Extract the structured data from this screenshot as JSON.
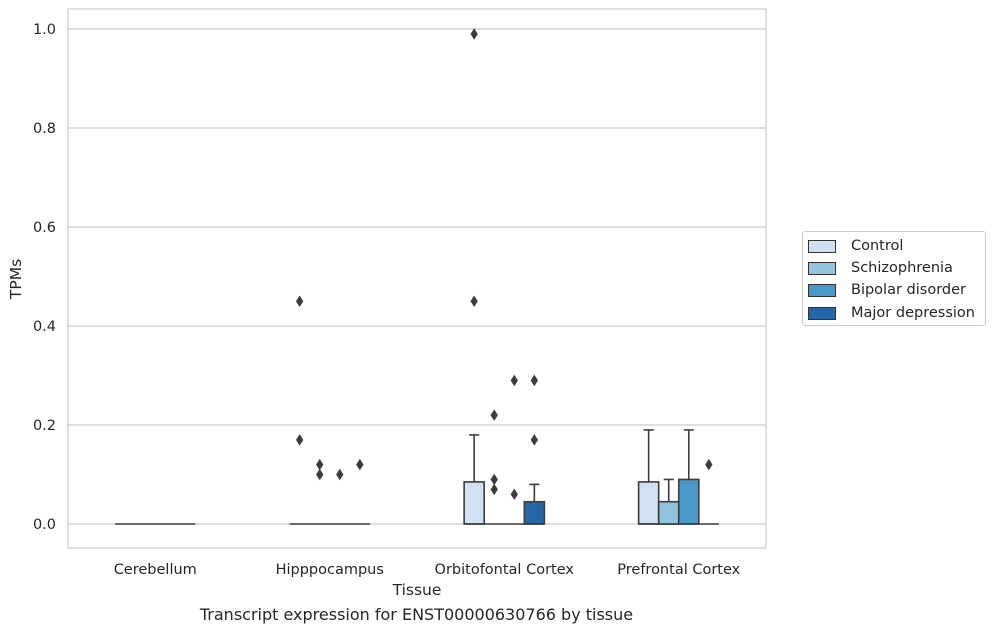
{
  "chart_data": {
    "type": "box",
    "xlabel": "Tissue",
    "ylabel": "TPMs",
    "caption": "Transcript expression for ENST00000630766 by tissue",
    "categories": [
      "Cerebellum",
      "Hipppocampus",
      "Orbitofontal Cortex",
      "Prefrontal Cortex"
    ],
    "ylim": [
      -0.05,
      1.04
    ],
    "yticks": [
      "0.0",
      "0.2",
      "0.4",
      "0.6",
      "0.8",
      "1.0"
    ],
    "grid": "horizontal",
    "legend_position": "right",
    "series": [
      {
        "name": "Control",
        "color": "#cfe1f2",
        "boxes": [
          {
            "q1": 0,
            "median": 0,
            "q3": 0,
            "whisker_low": 0,
            "whisker_high": 0,
            "outliers": []
          },
          {
            "q1": 0,
            "median": 0,
            "q3": 0,
            "whisker_low": 0,
            "whisker_high": 0,
            "outliers": [
              0.45,
              0.17
            ]
          },
          {
            "q1": 0,
            "median": 0,
            "q3": 0.085,
            "whisker_low": 0,
            "whisker_high": 0.18,
            "outliers": [
              0.99,
              0.45
            ]
          },
          {
            "q1": 0,
            "median": 0,
            "q3": 0.085,
            "whisker_low": 0,
            "whisker_high": 0.19,
            "outliers": []
          }
        ]
      },
      {
        "name": "Schizophrenia",
        "color": "#93c4de",
        "boxes": [
          {
            "q1": 0,
            "median": 0,
            "q3": 0,
            "whisker_low": 0,
            "whisker_high": 0,
            "outliers": []
          },
          {
            "q1": 0,
            "median": 0,
            "q3": 0,
            "whisker_low": 0,
            "whisker_high": 0,
            "outliers": [
              0.12,
              0.1
            ]
          },
          {
            "q1": 0,
            "median": 0,
            "q3": 0,
            "whisker_low": 0,
            "whisker_high": 0,
            "outliers": [
              0.22,
              0.09,
              0.07
            ]
          },
          {
            "q1": 0,
            "median": 0,
            "q3": 0.045,
            "whisker_low": 0,
            "whisker_high": 0.09,
            "outliers": []
          }
        ]
      },
      {
        "name": "Bipolar disorder",
        "color": "#4a98c9",
        "boxes": [
          {
            "q1": 0,
            "median": 0,
            "q3": 0,
            "whisker_low": 0,
            "whisker_high": 0,
            "outliers": []
          },
          {
            "q1": 0,
            "median": 0,
            "q3": 0,
            "whisker_low": 0,
            "whisker_high": 0,
            "outliers": [
              0.1
            ]
          },
          {
            "q1": 0,
            "median": 0,
            "q3": 0,
            "whisker_low": 0,
            "whisker_high": 0,
            "outliers": [
              0.29,
              0.06
            ]
          },
          {
            "q1": 0,
            "median": 0,
            "q3": 0.09,
            "whisker_low": 0,
            "whisker_high": 0.19,
            "outliers": []
          }
        ]
      },
      {
        "name": "Major depression",
        "color": "#2467a8",
        "boxes": [
          {
            "q1": 0,
            "median": 0,
            "q3": 0,
            "whisker_low": 0,
            "whisker_high": 0,
            "outliers": []
          },
          {
            "q1": 0,
            "median": 0,
            "q3": 0,
            "whisker_low": 0,
            "whisker_high": 0,
            "outliers": [
              0.12
            ]
          },
          {
            "q1": 0,
            "median": 0,
            "q3": 0.045,
            "whisker_low": 0,
            "whisker_high": 0.08,
            "outliers": [
              0.29,
              0.17
            ]
          },
          {
            "q1": 0,
            "median": 0,
            "q3": 0,
            "whisker_low": 0,
            "whisker_high": 0,
            "outliers": [
              0.12
            ]
          }
        ]
      }
    ]
  }
}
